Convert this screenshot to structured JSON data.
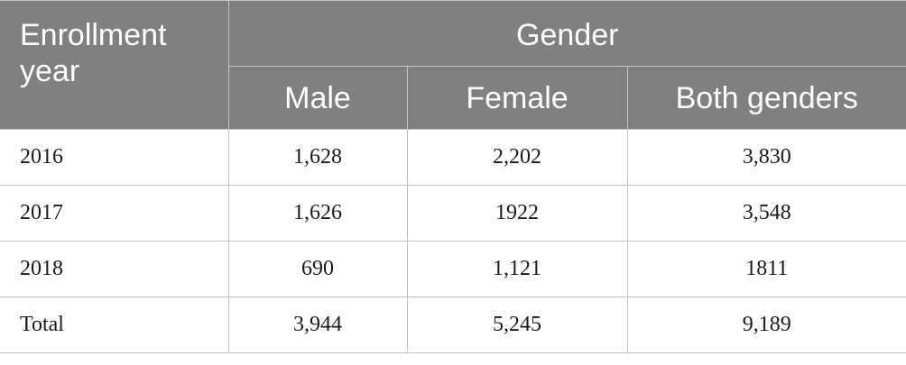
{
  "table": {
    "header": {
      "year_label": "Enrollment year",
      "group_label": "Gender",
      "columns": [
        "Male",
        "Female",
        "Both genders"
      ]
    },
    "rows": [
      {
        "year": "2016",
        "male": "1,628",
        "female": "2,202",
        "both": "3,830"
      },
      {
        "year": "2017",
        "male": "1,626",
        "female": "1922",
        "both": "3,548"
      },
      {
        "year": "2018",
        "male": "690",
        "female": "1,121",
        "both": "1811"
      },
      {
        "year": "Total",
        "male": "3,944",
        "female": "5,245",
        "both": "9,189"
      }
    ]
  },
  "colors": {
    "header_bg": "#808080",
    "header_text": "#ffffff",
    "grid_line": "#c4c4c4"
  }
}
